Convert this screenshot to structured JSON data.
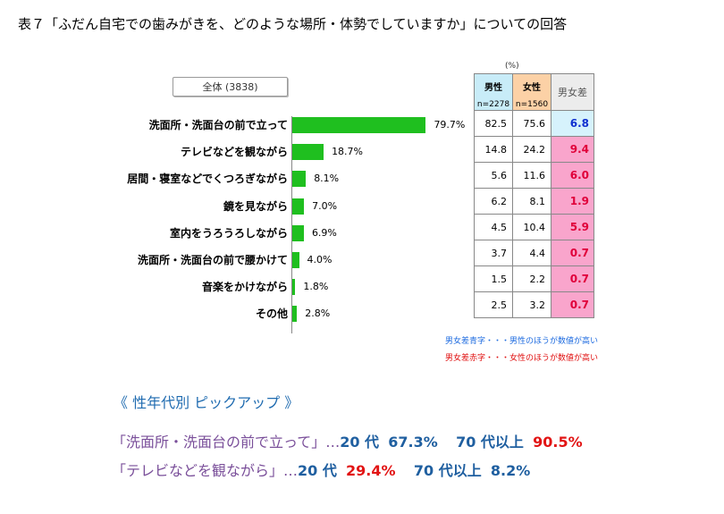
{
  "title": "表７「ふだん自宅での歯みがきを、どのような場所・体勢でしていますか」についての回答",
  "total_label": "全体 (3838)",
  "table": {
    "unit": "(%)",
    "headers": {
      "male": "男性",
      "male_n": "n=2278",
      "female": "女性",
      "female_n": "n=1560",
      "diff": "男女差"
    },
    "rows": [
      {
        "male": "82.5",
        "female": "75.6",
        "diff": "6.8",
        "diff_color": "blue"
      },
      {
        "male": "14.8",
        "female": "24.2",
        "diff": "9.4",
        "diff_color": "red"
      },
      {
        "male": "5.6",
        "female": "11.6",
        "diff": "6.0",
        "diff_color": "red"
      },
      {
        "male": "6.2",
        "female": "8.1",
        "diff": "1.9",
        "diff_color": "red"
      },
      {
        "male": "4.5",
        "female": "10.4",
        "diff": "5.9",
        "diff_color": "red"
      },
      {
        "male": "3.7",
        "female": "4.4",
        "diff": "0.7",
        "diff_color": "red"
      },
      {
        "male": "1.5",
        "female": "2.2",
        "diff": "0.7",
        "diff_color": "red"
      },
      {
        "male": "2.5",
        "female": "3.2",
        "diff": "0.7",
        "diff_color": "red"
      }
    ],
    "note_blue": "男女差青字・・・男性のほうが数値が高い",
    "note_red": "男女差赤字・・・女性のほうが数値が高い",
    "colors": {
      "blue": "#1030d0",
      "red": "#e0003a",
      "male_header": "#c8ecf8",
      "female_header": "#fcd1a6"
    }
  },
  "chart_data": {
    "type": "bar",
    "orientation": "horizontal",
    "categories": [
      "洗面所・洗面台の前で立って",
      "テレビなどを観ながら",
      "居間・寝室などでくつろぎながら",
      "鏡を見ながら",
      "室内をうろうろしながら",
      "洗面所・洗面台の前で腰かけて",
      "音楽をかけながら",
      "その他"
    ],
    "values": [
      79.7,
      18.7,
      8.1,
      7.0,
      6.9,
      4.0,
      1.8,
      2.8
    ],
    "value_labels": [
      "79.7%",
      "18.7%",
      "8.1%",
      "7.0%",
      "6.9%",
      "4.0%",
      "1.8%",
      "2.8%"
    ],
    "xlim": [
      0,
      100
    ],
    "bar_color": "#1fbf1f"
  },
  "pickup": {
    "title": "《 性年代別 ピックアップ 》",
    "items": [
      {
        "item": "「洗面所・洗面台の前で立って」…",
        "age1": "20 代",
        "val1": "67.3%",
        "age2": "70 代以上",
        "val2": "90.5%",
        "val1_color": "navy",
        "val2_color": "red"
      },
      {
        "item": "「テレビなどを観ながら」…",
        "age1": "20 代",
        "val1": "29.4%",
        "age2": "70 代以上",
        "val2": "8.2%",
        "val1_color": "red",
        "val2_color": "navy"
      }
    ]
  }
}
